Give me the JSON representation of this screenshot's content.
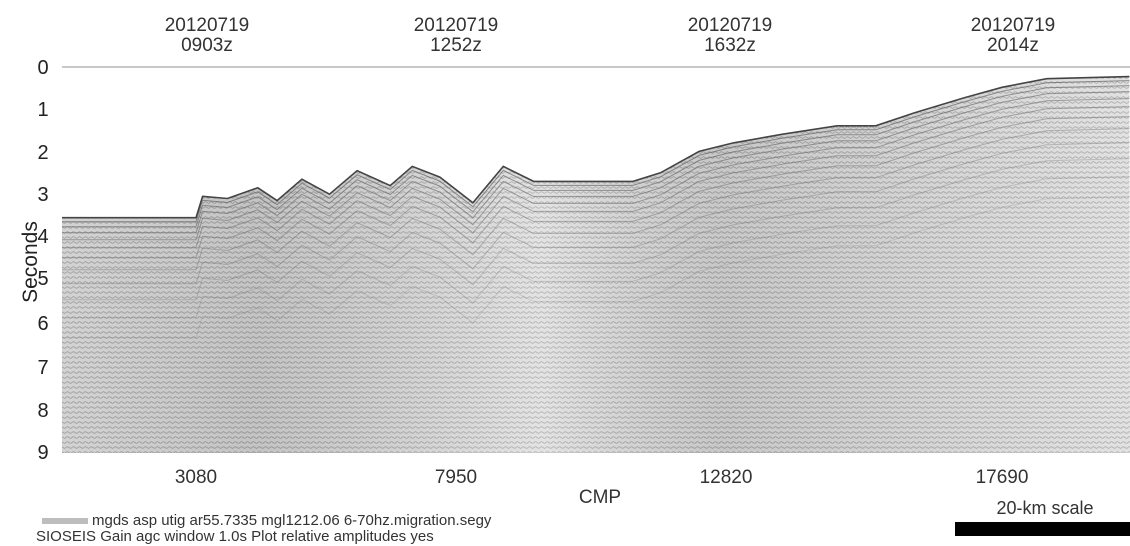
{
  "chart_data": {
    "type": "seismic-section",
    "title": "",
    "xlabel": "CMP",
    "ylabel": "Seconds",
    "y_axis": {
      "ticks": [
        "0",
        "1",
        "2",
        "3",
        "4",
        "5",
        "6",
        "7",
        "8",
        "9"
      ],
      "range": [
        0,
        9
      ],
      "inverted": true
    },
    "x_axis": {
      "ticks": [
        "3080",
        "7950",
        "12820",
        "17690"
      ]
    },
    "time_labels": [
      {
        "date": "20120719",
        "time": "0903z",
        "cmp": 3080
      },
      {
        "date": "20120719",
        "time": "1252z",
        "cmp": 7950
      },
      {
        "date": "20120719",
        "time": "1632z",
        "cmp": 12820
      },
      {
        "date": "20120719",
        "time": "2014z",
        "cmp": 17690
      }
    ],
    "seafloor_profile": [
      {
        "cmp": 400,
        "seconds": 3.5
      },
      {
        "cmp": 1300,
        "seconds": 3.5
      },
      {
        "cmp": 3080,
        "seconds": 3.5
      },
      {
        "cmp": 3200,
        "seconds": 3.0
      },
      {
        "cmp": 3650,
        "seconds": 3.05
      },
      {
        "cmp": 4200,
        "seconds": 2.8
      },
      {
        "cmp": 4550,
        "seconds": 3.1
      },
      {
        "cmp": 5000,
        "seconds": 2.6
      },
      {
        "cmp": 5500,
        "seconds": 2.95
      },
      {
        "cmp": 6000,
        "seconds": 2.4
      },
      {
        "cmp": 6600,
        "seconds": 2.75
      },
      {
        "cmp": 7000,
        "seconds": 2.3
      },
      {
        "cmp": 7500,
        "seconds": 2.55
      },
      {
        "cmp": 8100,
        "seconds": 3.15
      },
      {
        "cmp": 8650,
        "seconds": 2.3
      },
      {
        "cmp": 9200,
        "seconds": 2.65
      },
      {
        "cmp": 10000,
        "seconds": 2.65
      },
      {
        "cmp": 11000,
        "seconds": 2.65
      },
      {
        "cmp": 11500,
        "seconds": 2.45
      },
      {
        "cmp": 12200,
        "seconds": 1.95
      },
      {
        "cmp": 12820,
        "seconds": 1.75
      },
      {
        "cmp": 13700,
        "seconds": 1.55
      },
      {
        "cmp": 14700,
        "seconds": 1.35
      },
      {
        "cmp": 15400,
        "seconds": 1.35
      },
      {
        "cmp": 16100,
        "seconds": 1.05
      },
      {
        "cmp": 17000,
        "seconds": 0.7
      },
      {
        "cmp": 17690,
        "seconds": 0.45
      },
      {
        "cmp": 18500,
        "seconds": 0.25
      },
      {
        "cmp": 20000,
        "seconds": 0.2
      }
    ]
  },
  "footer": {
    "line1": "mgds asp  utig ar55.7335 mgl1212.06  6-70hz.migration.segy",
    "line2": "SIOSEIS Gain agc  window  1.0s Plot  relative  amplitudes yes"
  },
  "scale_bar": {
    "label": "20-km scale"
  },
  "colors": {
    "background": "#ffffff",
    "section_fill": "#dcdcdc",
    "reflector": "#555555",
    "scale_bar": "#000000"
  }
}
